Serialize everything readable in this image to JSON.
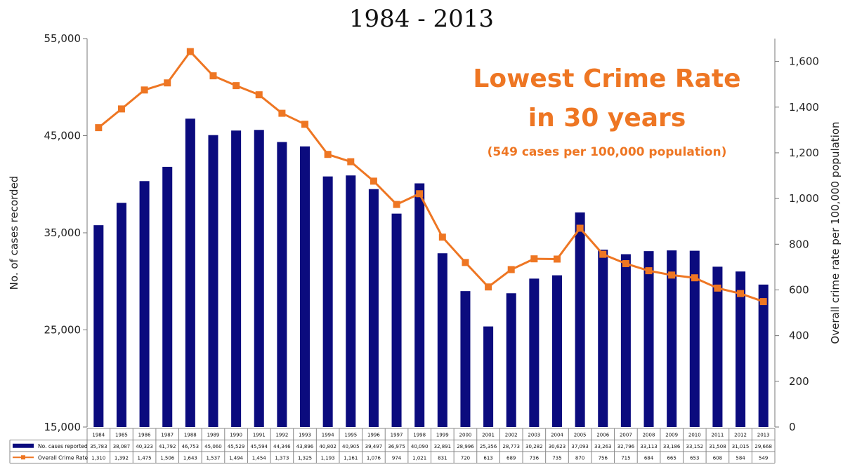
{
  "chart_data": {
    "type": "bar",
    "title": "1984 - 2013",
    "annotation": {
      "line1": "Lowest Crime Rate",
      "line2": "in 30 years",
      "line3": "(549 cases per 100,000 population)"
    },
    "categories": [
      "1984",
      "1985",
      "1986",
      "1987",
      "1988",
      "1989",
      "1990",
      "1991",
      "1992",
      "1993",
      "1994",
      "1995",
      "1996",
      "1997",
      "1998",
      "1999",
      "2000",
      "2001",
      "2002",
      "2003",
      "2004",
      "2005",
      "2006",
      "2007",
      "2008",
      "2009",
      "2010",
      "2011",
      "2012",
      "2013"
    ],
    "series": [
      {
        "name": "No. cases reported",
        "type": "bar",
        "axis": "left",
        "color": "#0b0b7e",
        "values": [
          35783,
          38087,
          40323,
          41792,
          46753,
          45060,
          45529,
          45594,
          44346,
          43896,
          40802,
          40905,
          39497,
          36975,
          40090,
          32891,
          28996,
          25356,
          28773,
          30282,
          30623,
          37093,
          33263,
          32796,
          33113,
          33186,
          33152,
          31508,
          31015,
          29668
        ],
        "labels": [
          "35,783",
          "38,087",
          "40,323",
          "41,792",
          "46,753",
          "45,060",
          "45,529",
          "45,594",
          "44,346",
          "43,896",
          "40,802",
          "40,905",
          "39,497",
          "36,975",
          "40,090",
          "32,891",
          "28,996",
          "25,356",
          "28,773",
          "30,282",
          "30,623",
          "37,093",
          "33,263",
          "32,796",
          "33,113",
          "33,186",
          "33,152",
          "31,508",
          "31,015",
          "29,668"
        ]
      },
      {
        "name": "Overall Crime Rate",
        "type": "line",
        "axis": "right",
        "color": "#ee7623",
        "values": [
          1310,
          1392,
          1475,
          1506,
          1643,
          1537,
          1494,
          1454,
          1373,
          1325,
          1193,
          1161,
          1076,
          974,
          1021,
          831,
          720,
          613,
          689,
          736,
          735,
          870,
          756,
          715,
          684,
          665,
          653,
          608,
          584,
          549
        ],
        "labels": [
          "1,310",
          "1,392",
          "1,475",
          "1,506",
          "1,643",
          "1,537",
          "1,494",
          "1,454",
          "1,373",
          "1,325",
          "1,193",
          "1,161",
          "1,076",
          "974",
          "1,021",
          "831",
          "720",
          "613",
          "689",
          "736",
          "735",
          "870",
          "756",
          "715",
          "684",
          "665",
          "653",
          "608",
          "584",
          "549"
        ]
      }
    ],
    "left_axis": {
      "label": "No. of cases recorded",
      "range": [
        15000,
        55000
      ],
      "ticks": [
        15000,
        25000,
        35000,
        45000,
        55000
      ],
      "tick_labels": [
        "15,000",
        "25,000",
        "35,000",
        "45,000",
        "55,000"
      ]
    },
    "right_axis": {
      "label": "Overall crime rate per 100,000 population",
      "range": [
        0,
        1700
      ],
      "ticks": [
        0,
        200,
        400,
        600,
        800,
        1000,
        1200,
        1400,
        1600
      ],
      "tick_labels": [
        "0",
        "200",
        "400",
        "600",
        "800",
        "1,000",
        "1,200",
        "1,400",
        "1,600"
      ]
    },
    "grid": false,
    "legend": "data-table-below"
  }
}
